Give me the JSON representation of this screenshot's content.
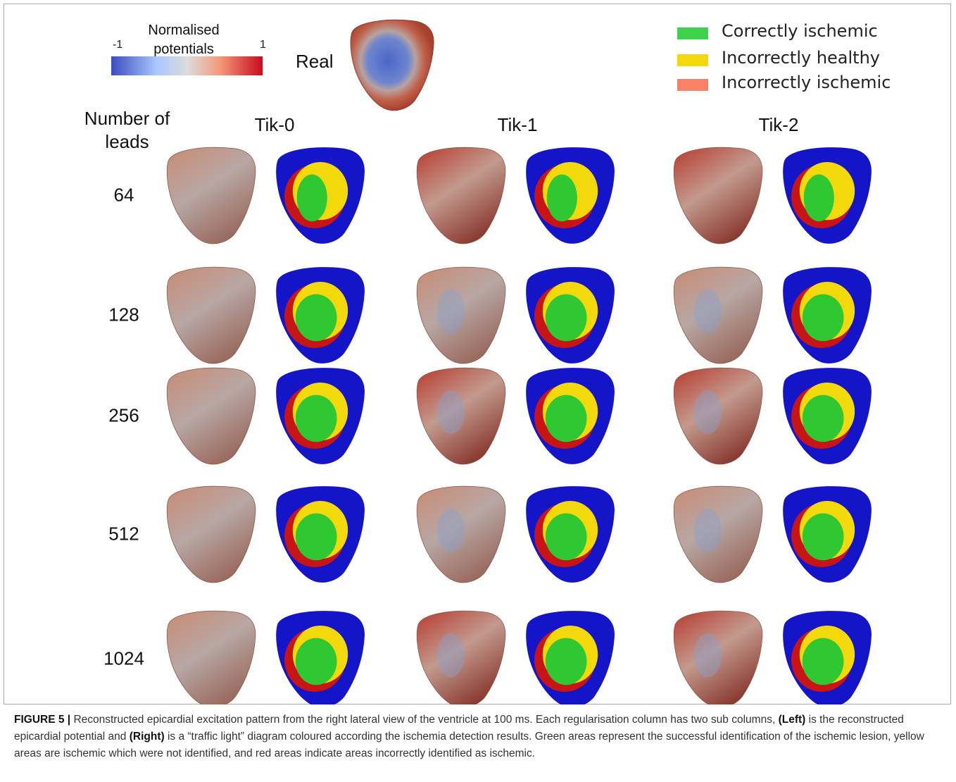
{
  "colorbar": {
    "title": "Normalised potentials",
    "min": -1,
    "max": 1
  },
  "real_label": "Real",
  "legend": [
    {
      "label": "Correctly ischemic",
      "color": "#3fd14c"
    },
    {
      "label": "Incorrectly healthy",
      "color": "#f3d80c"
    },
    {
      "label": "Incorrectly ischemic",
      "color": "#f98266"
    }
  ],
  "row_header": "Number of leads",
  "columns": [
    "Tik-0",
    "Tik-1",
    "Tik-2"
  ],
  "rows": [
    "64",
    "128",
    "256",
    "512",
    "1024"
  ],
  "caption": [
    {
      "text": "FIGURE 5 |",
      "bold": true
    },
    {
      "text": " Reconstructed epicardial excitation pattern from the right lateral view of the ventricle at 100 ms. Each regularisation column has two sub columns, ",
      "bold": false
    },
    {
      "text": "(Left)",
      "bold": true
    },
    {
      "text": " is the reconstructed epicardial potential and ",
      "bold": false
    },
    {
      "text": "(Right)",
      "bold": true
    },
    {
      "text": " is a “traffic light” diagram coloured according the ischemia detection results. Green areas represent the successful identification of the ischemic lesion, yellow areas are ischemic which were not identified, and red areas indicate areas incorrectly identified as ischemic.",
      "bold": false
    }
  ]
}
